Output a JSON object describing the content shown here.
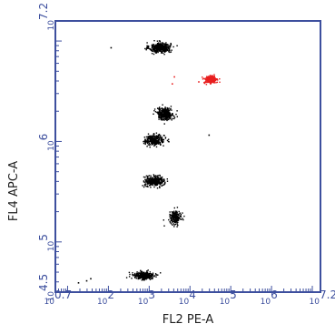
{
  "chart_data": {
    "type": "scatter",
    "x_axis": {
      "label": "FL2 PE-A",
      "scale": "log10",
      "range_log10": [
        0.7,
        7.2
      ],
      "tick_labels": [
        {
          "base": "10",
          "exp": "0.7",
          "log10": 0.7
        },
        {
          "base": "10",
          "exp": "2",
          "log10": 2
        },
        {
          "base": "10",
          "exp": "3",
          "log10": 3
        },
        {
          "base": "10",
          "exp": "4",
          "log10": 4
        },
        {
          "base": "10",
          "exp": "5",
          "log10": 5
        },
        {
          "base": "10",
          "exp": "6",
          "log10": 6
        },
        {
          "base": "10",
          "exp": "7.2",
          "log10": 7.2
        }
      ]
    },
    "y_axis": {
      "label": "FL4 APC-A",
      "scale": "log10",
      "range_log10": [
        4.5,
        7.2
      ],
      "tick_labels": [
        {
          "base": "10",
          "exp": "4.5",
          "log10": 4.5
        },
        {
          "base": "10",
          "exp": "5",
          "log10": 5
        },
        {
          "base": "10",
          "exp": "6",
          "log10": 6
        },
        {
          "base": "10",
          "exp": "7.2",
          "log10": 7.2
        }
      ]
    },
    "clusters": [
      {
        "color": "#000000",
        "x_log10": 3.25,
        "y_log10": 6.94,
        "x_spread": 0.13,
        "y_spread": 0.025,
        "count": 380
      },
      {
        "color": "#000000",
        "x_log10": 3.38,
        "y_log10": 6.28,
        "x_spread": 0.1,
        "y_spread": 0.03,
        "count": 320
      },
      {
        "color": "#000000",
        "x_log10": 3.12,
        "y_log10": 6.02,
        "x_spread": 0.12,
        "y_spread": 0.025,
        "count": 300
      },
      {
        "color": "#000000",
        "x_log10": 3.12,
        "y_log10": 5.61,
        "x_spread": 0.12,
        "y_spread": 0.025,
        "count": 320
      },
      {
        "color": "#000000",
        "x_log10": 3.63,
        "y_log10": 5.25,
        "x_spread": 0.07,
        "y_spread": 0.03,
        "count": 200
      },
      {
        "color": "#000000",
        "x_log10": 2.85,
        "y_log10": 4.67,
        "x_spread": 0.13,
        "y_spread": 0.02,
        "count": 300
      },
      {
        "color": "#e81e1e",
        "x_log10": 4.5,
        "y_log10": 6.62,
        "x_spread": 0.08,
        "y_spread": 0.02,
        "count": 220
      }
    ],
    "sparse_events": [
      {
        "color": "#000000",
        "x_log10": 2.05,
        "y_log10": 6.94
      },
      {
        "color": "#000000",
        "x_log10": 1.45,
        "y_log10": 4.62
      },
      {
        "color": "#000000",
        "x_log10": 1.55,
        "y_log10": 4.64
      },
      {
        "color": "#000000",
        "x_log10": 1.25,
        "y_log10": 4.6
      },
      {
        "color": "#000000",
        "x_log10": 4.45,
        "y_log10": 6.07
      },
      {
        "color": "#e81e1e",
        "x_log10": 3.55,
        "y_log10": 6.58
      },
      {
        "color": "#e81e1e",
        "x_log10": 3.6,
        "y_log10": 6.65
      },
      {
        "color": "#e81e1e",
        "x_log10": 4.2,
        "y_log10": 6.6
      }
    ],
    "frame_color": "#3d4f9e",
    "grid": false
  }
}
